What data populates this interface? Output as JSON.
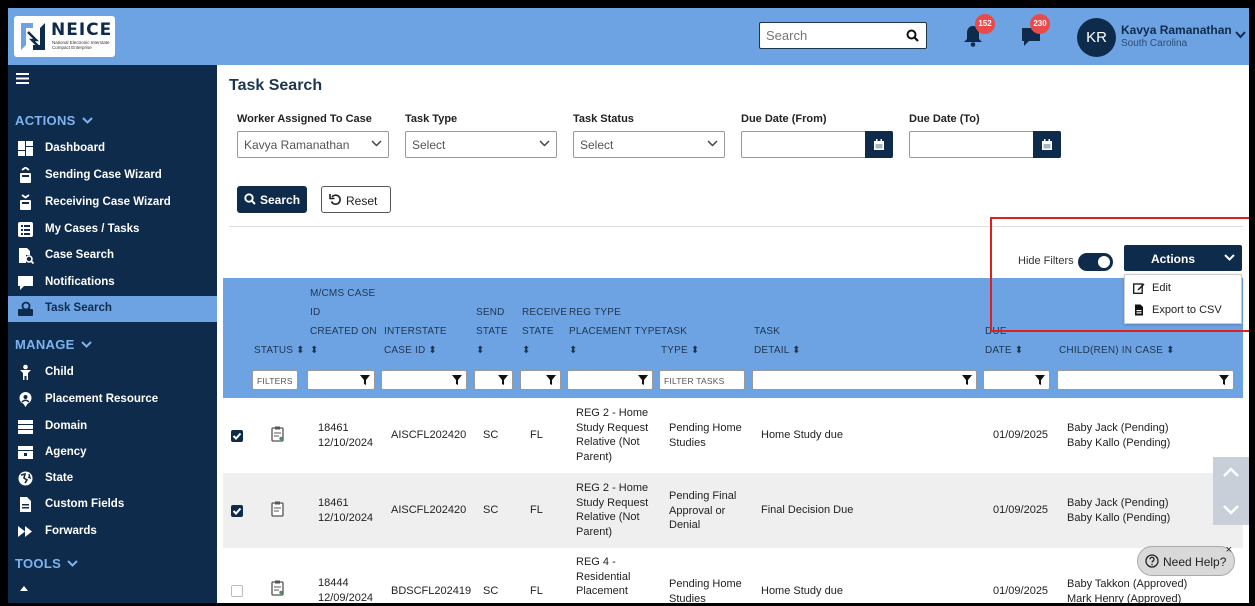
{
  "header": {
    "logo_name": "NEICE",
    "logo_sub": "National Electronic Interstate Compact Enterprise",
    "search_placeholder": "Search",
    "notifications_count": "152",
    "messages_count": "230",
    "user_initials": "KR",
    "user_name": "Kavya Ramanathan",
    "user_state": "South Carolina"
  },
  "sidebar": {
    "actions_label": "ACTIONS",
    "actions": [
      {
        "label": "Dashboard",
        "icon": "dashboard-icon"
      },
      {
        "label": "Sending Case Wizard",
        "icon": "sending-wizard-icon"
      },
      {
        "label": "Receiving Case Wizard",
        "icon": "receiving-wizard-icon"
      },
      {
        "label": "My Cases / Tasks",
        "icon": "list-icon"
      },
      {
        "label": "Case Search",
        "icon": "document-search-icon"
      },
      {
        "label": "Notifications",
        "icon": "chat-bubble-icon"
      },
      {
        "label": "Task Search",
        "icon": "task-search-icon"
      }
    ],
    "manage_label": "MANAGE",
    "manage": [
      {
        "label": "Child",
        "icon": "child-icon"
      },
      {
        "label": "Placement Resource",
        "icon": "placement-icon"
      },
      {
        "label": "Domain",
        "icon": "server-icon"
      },
      {
        "label": "Agency",
        "icon": "agency-icon"
      },
      {
        "label": "State",
        "icon": "globe-icon"
      },
      {
        "label": "Custom Fields",
        "icon": "file-icon"
      },
      {
        "label": "Forwards",
        "icon": "forward-icon"
      }
    ],
    "tools_label": "TOOLS"
  },
  "main": {
    "title": "Task Search",
    "filters": {
      "worker_label": "Worker Assigned To Case",
      "worker_value": "Kavya Ramanathan",
      "task_type_label": "Task Type",
      "task_type_value": "Select",
      "task_status_label": "Task Status",
      "task_status_value": "Select",
      "due_from_label": "Due Date (From)",
      "due_to_label": "Due Date (To)"
    },
    "search_button": "Search",
    "reset_button": "Reset",
    "hide_filters": "Hide Filters",
    "actions_button": "Actions",
    "actions_menu": [
      "Edit",
      "Export to CSV"
    ]
  },
  "table": {
    "headers": {
      "status": "STATUS ⬍",
      "case_id": [
        "M/CMS CASE",
        "ID",
        "CREATED ON",
        "⬍"
      ],
      "interstate": [
        "INTERSTATE",
        "CASE ID ⬍"
      ],
      "send_state": [
        "SEND",
        "STATE",
        "⬍"
      ],
      "receive_state": [
        "RECEIVE",
        "STATE",
        "⬍"
      ],
      "reg_type": [
        "REG TYPE",
        "PLACEMENT TYPE",
        "⬍"
      ],
      "task_type": [
        "TASK",
        "TYPE ⬍"
      ],
      "task_detail": [
        "TASK",
        "DETAIL ⬍"
      ],
      "due_date": [
        "DUE",
        "DATE ⬍"
      ],
      "children": "CHILD(REN) IN CASE ⬍"
    },
    "filter_status": "FILTERS",
    "filter_tasks": "FILTER TASKS",
    "rows": [
      {
        "checked": true,
        "case_id": "18461",
        "created": "12/10/2024",
        "interstate": "AISCFL202420",
        "send": "SC",
        "receive": "FL",
        "reg_type": [
          "REG 2 - Home",
          "Study Request",
          "Relative (Not",
          "Parent)"
        ],
        "task_type": [
          "Pending Home",
          "Studies"
        ],
        "task_detail": "Home Study due",
        "due": "01/09/2025",
        "children": [
          "Baby Jack (Pending)",
          "Baby Kallo (Pending)"
        ]
      },
      {
        "checked": true,
        "case_id": "18461",
        "created": "12/10/2024",
        "interstate": "AISCFL202420",
        "send": "SC",
        "receive": "FL",
        "reg_type": [
          "REG 2 - Home",
          "Study Request",
          "Relative (Not",
          "Parent)"
        ],
        "task_type": [
          "Pending Final",
          "Approval or",
          "Denial"
        ],
        "task_detail": "Final Decision Due",
        "due": "01/09/2025",
        "children": [
          "Baby Jack (Pending)",
          "Baby Kallo (Pending)"
        ]
      },
      {
        "checked": false,
        "case_id": "18444",
        "created": "12/09/2024",
        "interstate": "BDSCFL202419",
        "send": "SC",
        "receive": "FL",
        "reg_type": [
          "REG 4 -",
          "Residential",
          "Placement"
        ],
        "task_type": [
          "Pending Home",
          "Studies"
        ],
        "task_detail": "Home Study due",
        "due": "01/09/2025",
        "children": [
          "Baby Takkon (Approved)",
          "Mark Henry (Approved)"
        ]
      }
    ]
  },
  "help": {
    "label": "Need Help?",
    "close": "×"
  }
}
